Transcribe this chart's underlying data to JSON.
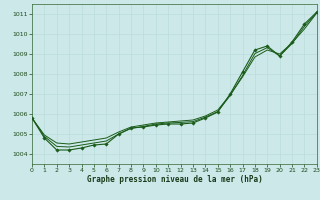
{
  "bg_color": "#cce8e8",
  "grid_color": "#bbdddd",
  "line_color": "#1a5c1a",
  "xlabel": "Graphe pression niveau de la mer (hPa)",
  "xlim": [
    0,
    23
  ],
  "ylim": [
    1003.5,
    1011.5
  ],
  "yticks": [
    1004,
    1005,
    1006,
    1007,
    1008,
    1009,
    1010,
    1011
  ],
  "xticks": [
    0,
    1,
    2,
    3,
    4,
    5,
    6,
    7,
    8,
    9,
    10,
    11,
    12,
    13,
    14,
    15,
    16,
    17,
    18,
    19,
    20,
    21,
    22,
    23
  ],
  "smooth_y1": [
    1005.8,
    1004.95,
    1004.55,
    1004.5,
    1004.6,
    1004.7,
    1004.8,
    1005.1,
    1005.35,
    1005.45,
    1005.55,
    1005.6,
    1005.65,
    1005.7,
    1005.9,
    1006.2,
    1006.95,
    1007.85,
    1008.85,
    1009.2,
    1009.0,
    1009.55,
    1010.25,
    1011.05
  ],
  "smooth_y2": [
    1005.8,
    1004.88,
    1004.38,
    1004.35,
    1004.45,
    1004.55,
    1004.65,
    1005.0,
    1005.28,
    1005.38,
    1005.5,
    1005.55,
    1005.58,
    1005.62,
    1005.84,
    1006.12,
    1006.92,
    1007.92,
    1009.02,
    1009.32,
    1008.9,
    1009.52,
    1010.38,
    1011.08
  ],
  "jagged_y": [
    1005.8,
    1004.8,
    1004.2,
    1004.2,
    1004.3,
    1004.45,
    1004.5,
    1005.0,
    1005.3,
    1005.35,
    1005.45,
    1005.5,
    1005.5,
    1005.55,
    1005.8,
    1006.1,
    1007.0,
    1008.1,
    1009.2,
    1009.4,
    1008.9,
    1009.6,
    1010.5,
    1011.1
  ]
}
